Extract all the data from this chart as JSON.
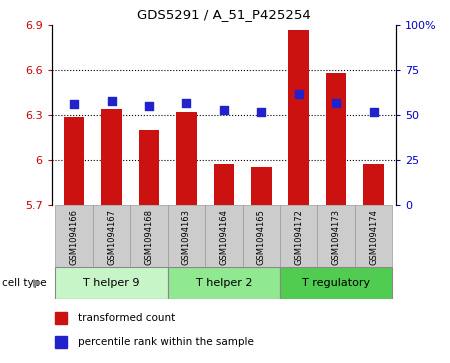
{
  "title": "GDS5291 / A_51_P425254",
  "samples": [
    "GSM1094166",
    "GSM1094167",
    "GSM1094168",
    "GSM1094163",
    "GSM1094164",
    "GSM1094165",
    "GSM1094172",
    "GSM1094173",
    "GSM1094174"
  ],
  "red_values": [
    6.285,
    6.34,
    6.2,
    6.32,
    5.975,
    5.955,
    6.87,
    6.585,
    5.975
  ],
  "blue_values": [
    56,
    58,
    55,
    57,
    53,
    52,
    62,
    57,
    52
  ],
  "ylim_left": [
    5.7,
    6.9
  ],
  "ylim_right": [
    0,
    100
  ],
  "yticks_left": [
    5.7,
    6.0,
    6.3,
    6.6,
    6.9
  ],
  "ytick_labels_left": [
    "5.7",
    "6",
    "6.3",
    "6.6",
    "6.9"
  ],
  "yticks_right": [
    0,
    25,
    50,
    75,
    100
  ],
  "ytick_labels_right": [
    "0",
    "25",
    "50",
    "75",
    "100%"
  ],
  "groups": [
    {
      "label": "T helper 9",
      "start": 0,
      "end": 2,
      "color": "#c8f5c8"
    },
    {
      "label": "T helper 2",
      "start": 3,
      "end": 5,
      "color": "#90e890"
    },
    {
      "label": "T regulatory",
      "start": 6,
      "end": 8,
      "color": "#50cc50"
    }
  ],
  "cell_type_label": "cell type",
  "legend_red": "transformed count",
  "legend_blue": "percentile rank within the sample",
  "bar_color": "#cc1111",
  "dot_color": "#2222cc",
  "bar_width": 0.55,
  "dot_size": 28,
  "sample_bg_color": "#cccccc"
}
